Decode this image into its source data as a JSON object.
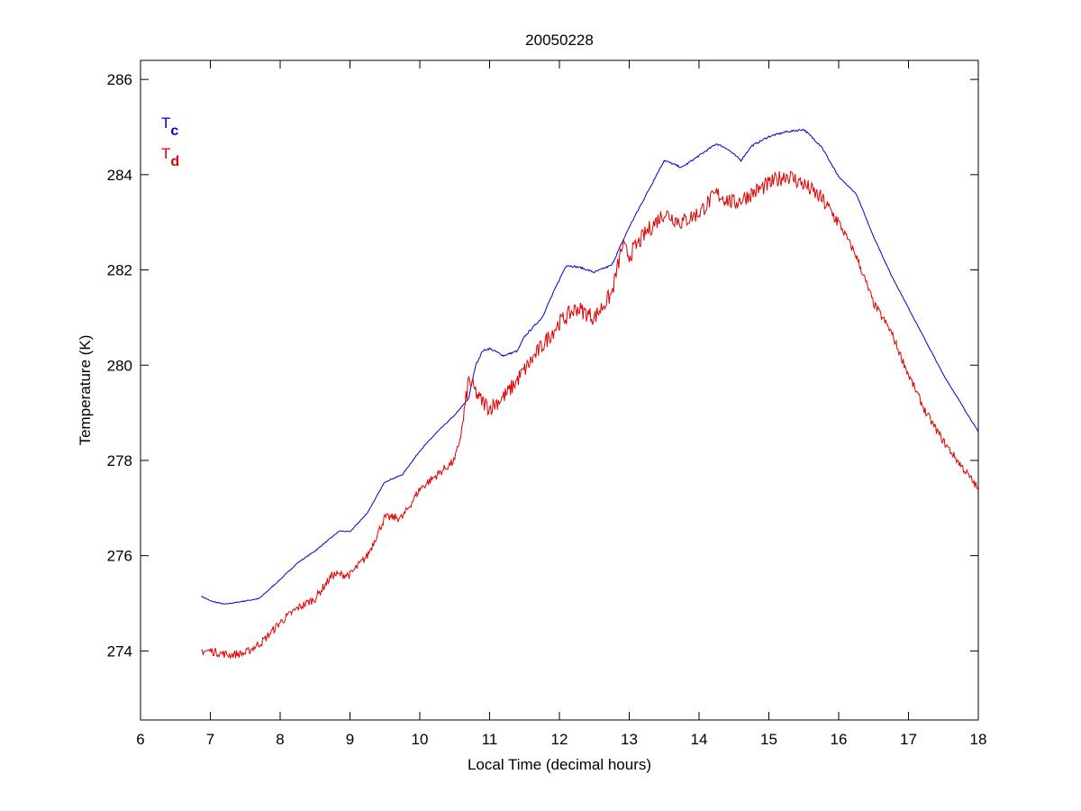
{
  "chart_data": {
    "type": "line",
    "title": "20050228",
    "xlabel": "Local Time (decimal hours)",
    "ylabel": "Temperature (K)",
    "xlim": [
      6,
      18
    ],
    "ylim": [
      272.55,
      286.4
    ],
    "xticks": [
      6,
      7,
      8,
      9,
      10,
      11,
      12,
      13,
      14,
      15,
      16,
      17,
      18
    ],
    "yticks": [
      274,
      276,
      278,
      280,
      282,
      284,
      286
    ],
    "grid": false,
    "legend_placement": "top-left",
    "series": [
      {
        "name": "Tc",
        "label_main": "T",
        "label_sub": "c",
        "color": "#0000cc",
        "x": [
          6.87,
          7.0,
          7.2,
          7.5,
          7.7,
          8.0,
          8.25,
          8.5,
          8.75,
          8.85,
          9.0,
          9.25,
          9.5,
          9.75,
          10.0,
          10.25,
          10.5,
          10.7,
          10.8,
          10.9,
          11.0,
          11.2,
          11.4,
          11.5,
          11.75,
          12.0,
          12.1,
          12.3,
          12.5,
          12.75,
          13.0,
          13.25,
          13.5,
          13.75,
          14.0,
          14.25,
          14.4,
          14.6,
          14.75,
          15.0,
          15.25,
          15.5,
          15.75,
          16.0,
          16.25,
          16.5,
          16.75,
          17.0,
          17.25,
          17.5,
          17.75,
          18.0
        ],
        "y": [
          275.15,
          275.05,
          274.98,
          275.05,
          275.1,
          275.5,
          275.85,
          276.1,
          276.4,
          276.52,
          276.5,
          276.9,
          277.55,
          277.7,
          278.2,
          278.6,
          278.95,
          279.3,
          280.0,
          280.3,
          280.35,
          280.2,
          280.3,
          280.6,
          281.0,
          281.8,
          282.1,
          282.05,
          281.95,
          282.1,
          282.9,
          283.6,
          284.3,
          284.15,
          284.4,
          284.65,
          284.55,
          284.3,
          284.6,
          284.8,
          284.9,
          284.95,
          284.6,
          283.95,
          283.6,
          282.7,
          281.9,
          281.2,
          280.5,
          279.8,
          279.2,
          278.6
        ]
      },
      {
        "name": "Td",
        "label_main": "T",
        "label_sub": "d",
        "color": "#e00000",
        "x": [
          6.87,
          7.0,
          7.25,
          7.5,
          7.75,
          8.0,
          8.25,
          8.5,
          8.75,
          9.0,
          9.25,
          9.5,
          9.75,
          10.0,
          10.25,
          10.5,
          10.6,
          10.7,
          10.85,
          11.0,
          11.25,
          11.5,
          11.75,
          12.0,
          12.25,
          12.5,
          12.75,
          12.9,
          13.0,
          13.25,
          13.5,
          13.75,
          14.0,
          14.25,
          14.5,
          14.75,
          15.0,
          15.25,
          15.5,
          15.75,
          16.0,
          16.25,
          16.5,
          16.75,
          17.0,
          17.25,
          17.5,
          17.75,
          18.0
        ],
        "y": [
          274.0,
          274.0,
          273.92,
          273.95,
          274.2,
          274.6,
          274.9,
          275.1,
          275.6,
          275.6,
          276.0,
          276.8,
          276.8,
          277.4,
          277.7,
          278.0,
          278.6,
          279.7,
          279.3,
          279.1,
          279.4,
          279.9,
          280.4,
          280.9,
          281.2,
          281.0,
          281.5,
          282.5,
          282.3,
          282.8,
          283.2,
          283.0,
          283.2,
          283.6,
          283.4,
          283.6,
          283.8,
          284.0,
          283.8,
          283.5,
          283.0,
          282.3,
          281.3,
          280.7,
          279.8,
          279.0,
          278.4,
          277.9,
          277.4
        ]
      }
    ]
  }
}
